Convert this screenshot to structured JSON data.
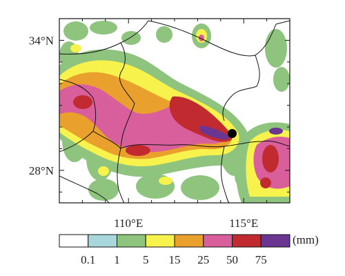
{
  "map": {
    "lat_labels": [
      "34°N",
      "28°N"
    ],
    "lon_labels": [
      "110°E",
      "115°E"
    ],
    "lat_ticks": [
      34,
      28
    ],
    "lon_ticks": [
      110,
      115
    ],
    "extent": {
      "lon": [
        107,
        117
      ],
      "lat": [
        26.5,
        35
      ]
    },
    "station": {
      "lon": 114.5,
      "lat": 29.7
    }
  },
  "colorbar": {
    "unit": "(mm)",
    "tick_labels": [
      "0.1",
      "1",
      "5",
      "15",
      "25",
      "50",
      "75"
    ],
    "colors": [
      "#ffffff",
      "#a8d8dc",
      "#8fc47f",
      "#f7f24c",
      "#e9a02c",
      "#d85f9c",
      "#c12a2e",
      "#6b3592"
    ]
  }
}
